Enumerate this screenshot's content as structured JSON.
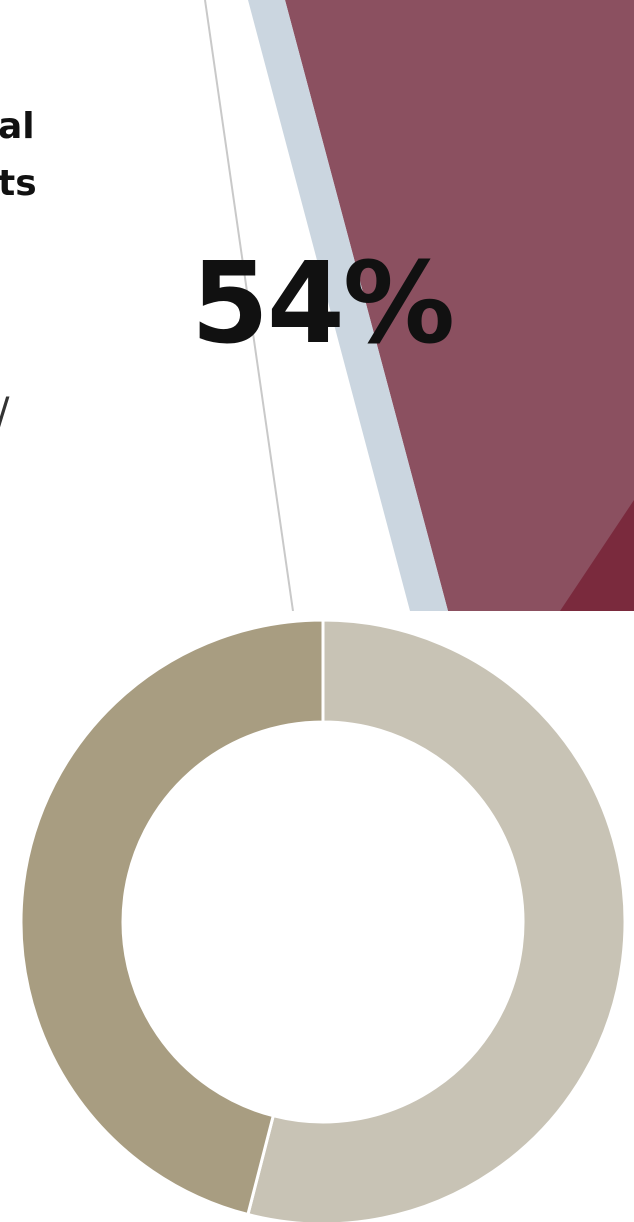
{
  "chart_data": {
    "type": "donut",
    "title": "",
    "center_label": "54%",
    "values": [
      54,
      46
    ],
    "colors": [
      "#c8c3b5",
      "#a89d81"
    ],
    "separator_color": "#ffffff"
  },
  "background": {
    "colors": {
      "crimson": "#8b5060",
      "dark_crimson": "#7a2a3d",
      "pale_blue": "#cbd6e0",
      "line": "#c9c9c9"
    }
  },
  "side_fragments": [
    "al",
    "ts",
    "/"
  ]
}
